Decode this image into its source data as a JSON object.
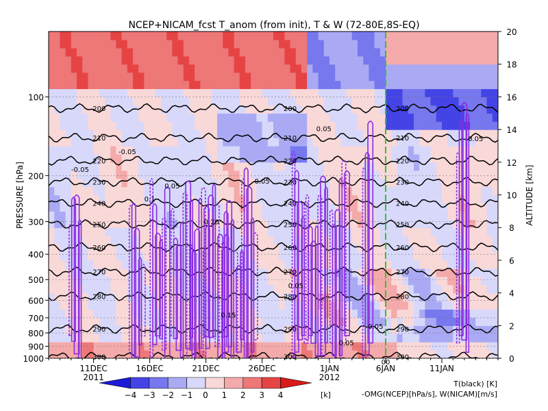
{
  "chart_data": {
    "type": "heatmap",
    "title": "NCEP+NICAM_fcst T_anom (from init), T & W  (72-80E,8S-EQ)",
    "ylabel_left": "PRESSURE [hPa]",
    "ylabel_right": "ALTITUDE [km]",
    "pressure_ticks": [
      100,
      200,
      300,
      400,
      500,
      600,
      700,
      800,
      900,
      1000
    ],
    "altitude_ticks": [
      0,
      2,
      4,
      6,
      8,
      10,
      12,
      14,
      16,
      18,
      20
    ],
    "altitude_range_km": [
      0,
      20
    ],
    "x_ticks": [
      {
        "label": "11DEC",
        "day": 11
      },
      {
        "label": "16DEC",
        "day": 16
      },
      {
        "label": "21DEC",
        "day": 21
      },
      {
        "label": "26DEC",
        "day": 26
      },
      {
        "label": "1JAN",
        "day": 32
      },
      {
        "label": "6JAN",
        "day": 37
      },
      {
        "label": "11JAN",
        "day": 42
      }
    ],
    "x_range_days": [
      7,
      47
    ],
    "year_labels": [
      {
        "label": "2011",
        "day": 11
      },
      {
        "label": "2012",
        "day": 32
      }
    ],
    "forecast_init_day": 37,
    "forecast_init_label": "00",
    "temperature_contours": [
      {
        "label": "200",
        "altitude_km": 15.3
      },
      {
        "label": "210",
        "altitude_km": 13.5
      },
      {
        "label": "220",
        "altitude_km": 12.1
      },
      {
        "label": "230",
        "altitude_km": 10.8
      },
      {
        "label": "240",
        "altitude_km": 9.5
      },
      {
        "label": "250",
        "altitude_km": 8.2
      },
      {
        "label": "260",
        "altitude_km": 6.8
      },
      {
        "label": "270",
        "altitude_km": 5.3
      },
      {
        "label": "280",
        "altitude_km": 3.8
      },
      {
        "label": "290",
        "altitude_km": 1.8
      },
      {
        "label": "300",
        "altitude_km": 0.1
      }
    ],
    "w_contour_labels": [
      "0.05",
      "0.1",
      "0.15",
      "0.20",
      "0.25",
      "-0.05"
    ],
    "colorbar": {
      "ticks": [
        -4,
        -3,
        -2,
        -1,
        0,
        1,
        2,
        3,
        4
      ],
      "unit": "[k]",
      "colors": [
        "#1a1ad8",
        "#4444e6",
        "#7777ee",
        "#aaaaf4",
        "#d8d8fa",
        "#f9d8d8",
        "#f4aaaa",
        "#ee7777",
        "#e64444",
        "#d81a1a"
      ]
    },
    "legend": {
      "temperature": "T(black) [K]",
      "omega": "-OMG(NCEP)[hPa/s], W(NICAM)[m/s]"
    },
    "colors": {
      "temperature_line": "#000000",
      "omega_line": "#8a2be2",
      "init_line": "#22cc22",
      "omega_text": "#8a2be2"
    }
  }
}
